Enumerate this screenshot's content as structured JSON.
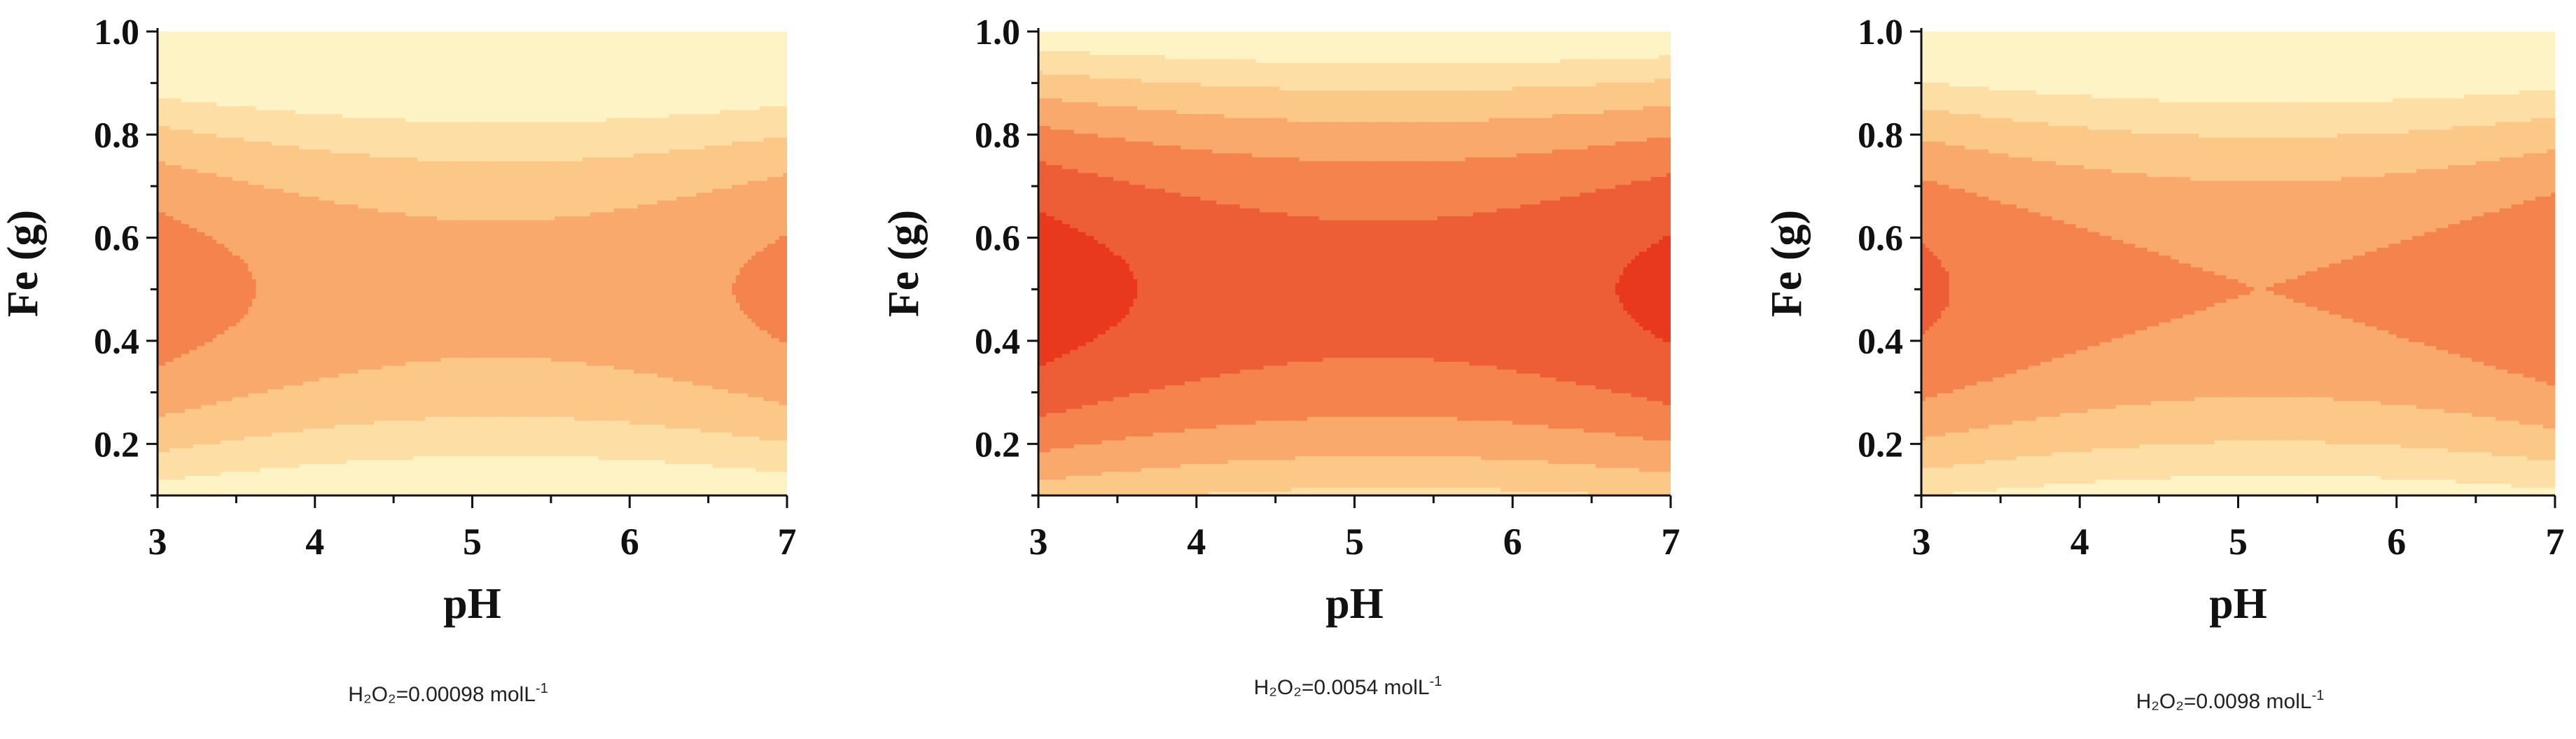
{
  "figure": {
    "colors": [
      "#FEF3C4",
      "#FDDFA5",
      "#FCC887",
      "#F9A96C",
      "#F4834E",
      "#EE5E36",
      "#E8381E",
      "#E4170F"
    ]
  },
  "chart_data": [
    {
      "type": "contour",
      "title": "",
      "xlabel": "pH",
      "ylabel": "Fe (g)",
      "xlim": [
        3,
        7
      ],
      "ylim": [
        0.1,
        1.0
      ],
      "xticks": [
        "3",
        "4",
        "5",
        "6",
        "7"
      ],
      "yticks": [
        "0.2",
        "0.4",
        "0.6",
        "0.8",
        "1.0"
      ],
      "caption": {
        "base": "H₂O₂=0.00098 molL",
        "sup": "-1"
      },
      "level_offset": 0
    },
    {
      "type": "contour",
      "title": "",
      "xlabel": "pH",
      "ylabel": "Fe (g)",
      "xlim": [
        3,
        7
      ],
      "ylim": [
        0.1,
        1.0
      ],
      "xticks": [
        "3",
        "4",
        "5",
        "6",
        "7"
      ],
      "yticks": [
        "0.2",
        "0.4",
        "0.6",
        "0.8",
        "1.0"
      ],
      "caption": {
        "base": "H₂O₂=0.0054 molL",
        "sup": "-1"
      },
      "level_offset": 2
    },
    {
      "type": "contour",
      "title": "",
      "xlabel": "pH",
      "ylabel": "Fe (g)",
      "xlim": [
        3,
        7
      ],
      "ylim": [
        0.1,
        1.0
      ],
      "xticks": [
        "3",
        "4",
        "5",
        "6",
        "7"
      ],
      "yticks": [
        "0.2",
        "0.4",
        "0.6",
        "0.8",
        "1.0"
      ],
      "caption": {
        "base": "H₂O₂=0.0098 molL",
        "sup": "-1"
      },
      "level_offset": 0.6
    }
  ]
}
